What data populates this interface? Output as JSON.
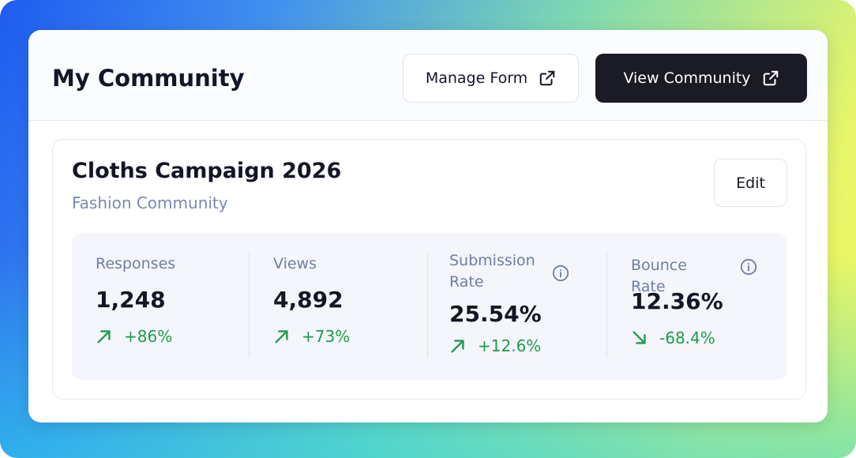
{
  "header": {
    "title": "My Community",
    "buttons": [
      "Manage Form",
      "View Community"
    ]
  },
  "card": {
    "title": "Cloths Campaign 2026",
    "subtitle": "Fashion Community",
    "edit": "Edit",
    "metrics": [
      {
        "label": "Responses",
        "value": "1,248",
        "change": "+86%"
      },
      {
        "label": "Views",
        "value": "4,892",
        "change": "+73%"
      },
      {
        "label": "Submission Rate",
        "value": "25.54%",
        "change": "+12.6%"
      },
      {
        "label": "Bounce Rate",
        "value": "12.36%",
        "change": "-68.4%"
      }
    ]
  }
}
